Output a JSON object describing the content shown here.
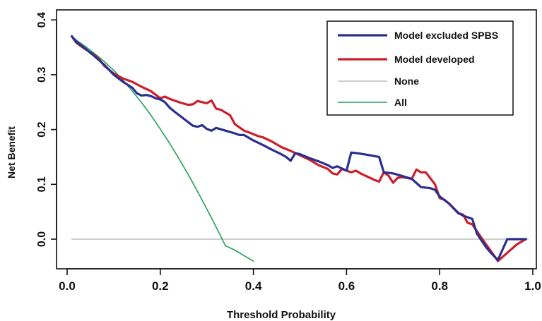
{
  "chart_data": {
    "type": "line",
    "title": "",
    "xlabel": "Threshold Probability",
    "ylabel": "Net Benefit",
    "xlim": [
      0.0,
      1.0
    ],
    "ylim": [
      -0.05,
      0.4
    ],
    "xticks": [
      0.0,
      0.2,
      0.4,
      0.6,
      0.8,
      1.0
    ],
    "xtick_labels": [
      "0.0",
      "0.2",
      "0.4",
      "0.6",
      "0.8",
      "1.0"
    ],
    "yticks": [
      0.0,
      0.1,
      0.2,
      0.3,
      0.4
    ],
    "ytick_labels": [
      "0.0",
      "0.1",
      "0.2",
      "0.3",
      "0.4"
    ],
    "grid": false,
    "legend_position": "top-right",
    "series": [
      {
        "name": "Model excluded SPBS",
        "color": "#2a2f8f",
        "x": [
          0.01,
          0.02,
          0.04,
          0.06,
          0.08,
          0.1,
          0.12,
          0.14,
          0.15,
          0.16,
          0.17,
          0.18,
          0.19,
          0.2,
          0.21,
          0.22,
          0.23,
          0.25,
          0.27,
          0.28,
          0.29,
          0.3,
          0.31,
          0.32,
          0.34,
          0.36,
          0.37,
          0.38,
          0.39,
          0.4,
          0.42,
          0.44,
          0.46,
          0.47,
          0.48,
          0.49,
          0.5,
          0.52,
          0.54,
          0.56,
          0.57,
          0.58,
          0.6,
          0.61,
          0.63,
          0.65,
          0.67,
          0.68,
          0.7,
          0.72,
          0.74,
          0.76,
          0.78,
          0.79,
          0.8,
          0.82,
          0.84,
          0.85,
          0.87,
          0.88,
          0.9,
          0.91,
          0.925,
          0.945,
          0.965,
          0.985
        ],
        "values": [
          0.37,
          0.36,
          0.347,
          0.333,
          0.318,
          0.3,
          0.287,
          0.276,
          0.266,
          0.262,
          0.263,
          0.261,
          0.257,
          0.255,
          0.25,
          0.24,
          0.233,
          0.22,
          0.207,
          0.205,
          0.208,
          0.201,
          0.198,
          0.203,
          0.198,
          0.193,
          0.19,
          0.19,
          0.185,
          0.18,
          0.172,
          0.163,
          0.155,
          0.15,
          0.143,
          0.157,
          0.155,
          0.148,
          0.142,
          0.135,
          0.13,
          0.133,
          0.125,
          0.158,
          0.156,
          0.153,
          0.15,
          0.122,
          0.12,
          0.115,
          0.11,
          0.095,
          0.093,
          0.09,
          0.078,
          0.065,
          0.048,
          0.043,
          0.037,
          0.01,
          -0.015,
          -0.025,
          -0.038,
          0.0,
          0.0,
          0.0
        ]
      },
      {
        "name": "Model developed",
        "color": "#cc1f2a",
        "x": [
          0.01,
          0.02,
          0.04,
          0.06,
          0.07,
          0.08,
          0.1,
          0.12,
          0.14,
          0.16,
          0.18,
          0.2,
          0.21,
          0.22,
          0.24,
          0.26,
          0.27,
          0.28,
          0.29,
          0.3,
          0.31,
          0.32,
          0.33,
          0.35,
          0.36,
          0.38,
          0.39,
          0.41,
          0.42,
          0.44,
          0.46,
          0.48,
          0.5,
          0.52,
          0.54,
          0.56,
          0.57,
          0.58,
          0.59,
          0.6,
          0.61,
          0.62,
          0.63,
          0.65,
          0.66,
          0.67,
          0.68,
          0.69,
          0.7,
          0.71,
          0.72,
          0.74,
          0.75,
          0.76,
          0.77,
          0.79,
          0.8,
          0.81,
          0.82,
          0.84,
          0.85,
          0.86,
          0.87,
          0.89,
          0.91,
          0.925,
          0.945,
          0.965,
          0.985
        ],
        "values": [
          0.37,
          0.358,
          0.346,
          0.335,
          0.327,
          0.316,
          0.302,
          0.293,
          0.287,
          0.278,
          0.27,
          0.257,
          0.26,
          0.256,
          0.25,
          0.245,
          0.246,
          0.252,
          0.25,
          0.248,
          0.253,
          0.238,
          0.236,
          0.226,
          0.21,
          0.198,
          0.195,
          0.188,
          0.186,
          0.178,
          0.168,
          0.161,
          0.153,
          0.145,
          0.135,
          0.128,
          0.12,
          0.118,
          0.128,
          0.125,
          0.122,
          0.125,
          0.12,
          0.112,
          0.108,
          0.105,
          0.122,
          0.116,
          0.103,
          0.112,
          0.113,
          0.11,
          0.127,
          0.122,
          0.122,
          0.1,
          0.075,
          0.072,
          0.065,
          0.047,
          0.045,
          0.03,
          0.027,
          0.002,
          -0.022,
          -0.04,
          -0.025,
          -0.01,
          0.0
        ]
      },
      {
        "name": "None",
        "color": "#b0b0b0",
        "x": [
          0.01,
          0.99
        ],
        "values": [
          0.0,
          0.0
        ]
      },
      {
        "name": "All",
        "color": "#22a05a",
        "x": [
          0.01,
          0.02,
          0.04,
          0.06,
          0.08,
          0.1,
          0.12,
          0.14,
          0.16,
          0.18,
          0.2,
          0.22,
          0.24,
          0.26,
          0.28,
          0.3,
          0.32,
          0.34,
          0.36,
          0.38,
          0.4
        ],
        "values": [
          0.37,
          0.363,
          0.351,
          0.338,
          0.324,
          0.308,
          0.29,
          0.27,
          0.249,
          0.226,
          0.201,
          0.175,
          0.147,
          0.118,
          0.087,
          0.055,
          0.022,
          -0.012,
          -0.02,
          -0.03,
          -0.04
        ]
      }
    ]
  }
}
